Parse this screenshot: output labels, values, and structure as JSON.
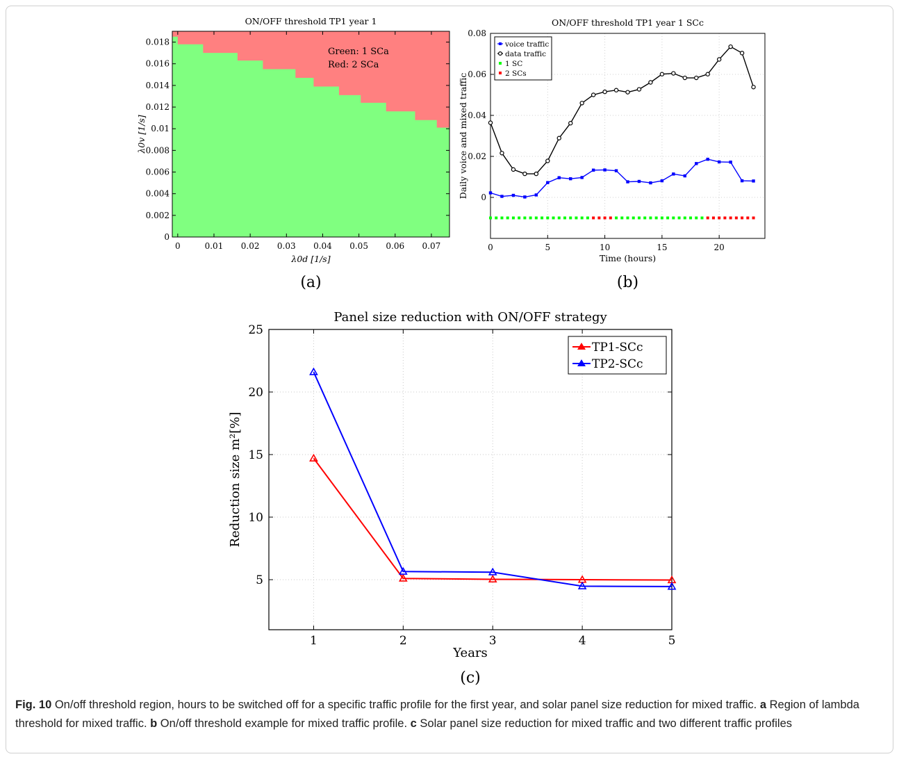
{
  "panels": {
    "a": {
      "label": "(a)",
      "chart_data": {
        "type": "heatmap",
        "title": "ON/OFF threshold TP1 year 1",
        "xlabel": "λ0d [1/s]",
        "ylabel": "λ0v [1/s]",
        "xlim": [
          -0.0015,
          0.075
        ],
        "ylim": [
          0,
          0.019
        ],
        "xticks": [
          0,
          0.01,
          0.02,
          0.03,
          0.04,
          0.05,
          0.06,
          0.07
        ],
        "yticks": [
          0,
          0.002,
          0.004,
          0.006,
          0.008,
          0.01,
          0.012,
          0.014,
          0.016,
          0.018
        ],
        "annotations": [
          "Green: 1 SCa",
          "Red: 2 SCa"
        ],
        "regions": {
          "below_threshold": "#80ff80",
          "above_threshold": "#ff8080"
        },
        "threshold_steps": [
          {
            "x0": -0.0015,
            "x1": 0.0,
            "y": 0.0185
          },
          {
            "x0": 0.0,
            "x1": 0.007,
            "y": 0.0178
          },
          {
            "x0": 0.007,
            "x1": 0.0165,
            "y": 0.017
          },
          {
            "x0": 0.0165,
            "x1": 0.0235,
            "y": 0.0163
          },
          {
            "x0": 0.0235,
            "x1": 0.0325,
            "y": 0.0155
          },
          {
            "x0": 0.0325,
            "x1": 0.0375,
            "y": 0.0147
          },
          {
            "x0": 0.0375,
            "x1": 0.0445,
            "y": 0.0139
          },
          {
            "x0": 0.0445,
            "x1": 0.0505,
            "y": 0.0131
          },
          {
            "x0": 0.0505,
            "x1": 0.0575,
            "y": 0.0124
          },
          {
            "x0": 0.0575,
            "x1": 0.0655,
            "y": 0.0116
          },
          {
            "x0": 0.0655,
            "x1": 0.0715,
            "y": 0.0108
          },
          {
            "x0": 0.0715,
            "x1": 0.075,
            "y": 0.0101
          }
        ]
      }
    },
    "b": {
      "label": "(b)",
      "chart_data": {
        "type": "line",
        "title": "ON/OFF threshold TP1 year 1 SCc",
        "xlabel": "Time (hours)",
        "ylabel": "Daily voice and mixed traffic",
        "xlim": [
          0,
          24
        ],
        "ylim": [
          -0.02,
          0.08
        ],
        "xticks": [
          0,
          5,
          10,
          15,
          20
        ],
        "yticks": [
          0,
          0.02,
          0.04,
          0.06,
          0.08
        ],
        "legend_position": "top-left",
        "x": [
          0,
          1,
          2,
          3,
          4,
          5,
          6,
          7,
          8,
          9,
          10,
          11,
          12,
          13,
          14,
          15,
          16,
          17,
          18,
          19,
          20,
          21,
          22,
          23
        ],
        "series": [
          {
            "name": "voice traffic",
            "color": "#0000ff",
            "marker": "square",
            "values": [
              0.0022,
              0.0005,
              0.001,
              0.0002,
              0.0012,
              0.0072,
              0.0096,
              0.0091,
              0.0097,
              0.0133,
              0.0134,
              0.013,
              0.0076,
              0.0078,
              0.0071,
              0.0081,
              0.0114,
              0.0105,
              0.0165,
              0.0186,
              0.0173,
              0.0172,
              0.0081,
              0.008
            ]
          },
          {
            "name": "data traffic",
            "color": "#000000",
            "marker": "circle",
            "values": [
              0.0364,
              0.0216,
              0.0136,
              0.0115,
              0.0115,
              0.0178,
              0.0289,
              0.0362,
              0.046,
              0.05,
              0.0515,
              0.0523,
              0.0513,
              0.0527,
              0.0561,
              0.0601,
              0.0605,
              0.0583,
              0.0583,
              0.0601,
              0.0673,
              0.0735,
              0.0704,
              0.0538
            ]
          }
        ],
        "state_series": {
          "y": -0.01,
          "legend": [
            {
              "name": "1 SC",
              "color": "#00ff00"
            },
            {
              "name": "2 SCs",
              "color": "#ff0000"
            }
          ],
          "states": [
            1,
            1,
            1,
            1,
            1,
            1,
            1,
            1,
            1,
            2,
            2,
            1,
            1,
            1,
            1,
            1,
            1,
            1,
            1,
            2,
            2,
            2,
            2,
            2
          ]
        }
      }
    },
    "c": {
      "label": "(c)",
      "chart_data": {
        "type": "line",
        "title": "Panel size reduction with ON/OFF strategy",
        "xlabel": "Years",
        "ylabel": "Reduction size m²[%]",
        "xlim": [
          0.5,
          5
        ],
        "ylim": [
          1,
          25
        ],
        "xticks": [
          1,
          2,
          3,
          4,
          5
        ],
        "yticks": [
          5,
          10,
          15,
          20,
          25
        ],
        "legend_position": "top-right",
        "grid": "dotted",
        "x": [
          1,
          2,
          3,
          4,
          5
        ],
        "series": [
          {
            "name": "TP1-SCc",
            "color": "#ff0000",
            "marker": "triangle",
            "values": [
              14.7,
              5.1,
              5.03,
              5.0,
              4.97
            ]
          },
          {
            "name": "TP2-SCc",
            "color": "#0000ff",
            "marker": "triangle",
            "values": [
              21.6,
              5.65,
              5.6,
              4.48,
              4.45
            ]
          }
        ]
      }
    }
  },
  "caption": {
    "fig_label": "Fig. 10",
    "fig_text": " On/off threshold region, hours to be switched off for a specific traffic profile for the first year, and solar panel size reduction for mixed traffic.",
    "a_label": "a",
    "a_text": " Region of lambda threshold for mixed traffic.",
    "b_label": "b",
    "b_text": " On/off threshold example for mixed traffic profile.",
    "c_label": "c",
    "c_text": " Solar panel size reduction for mixed traffic and two different traffic profiles"
  }
}
